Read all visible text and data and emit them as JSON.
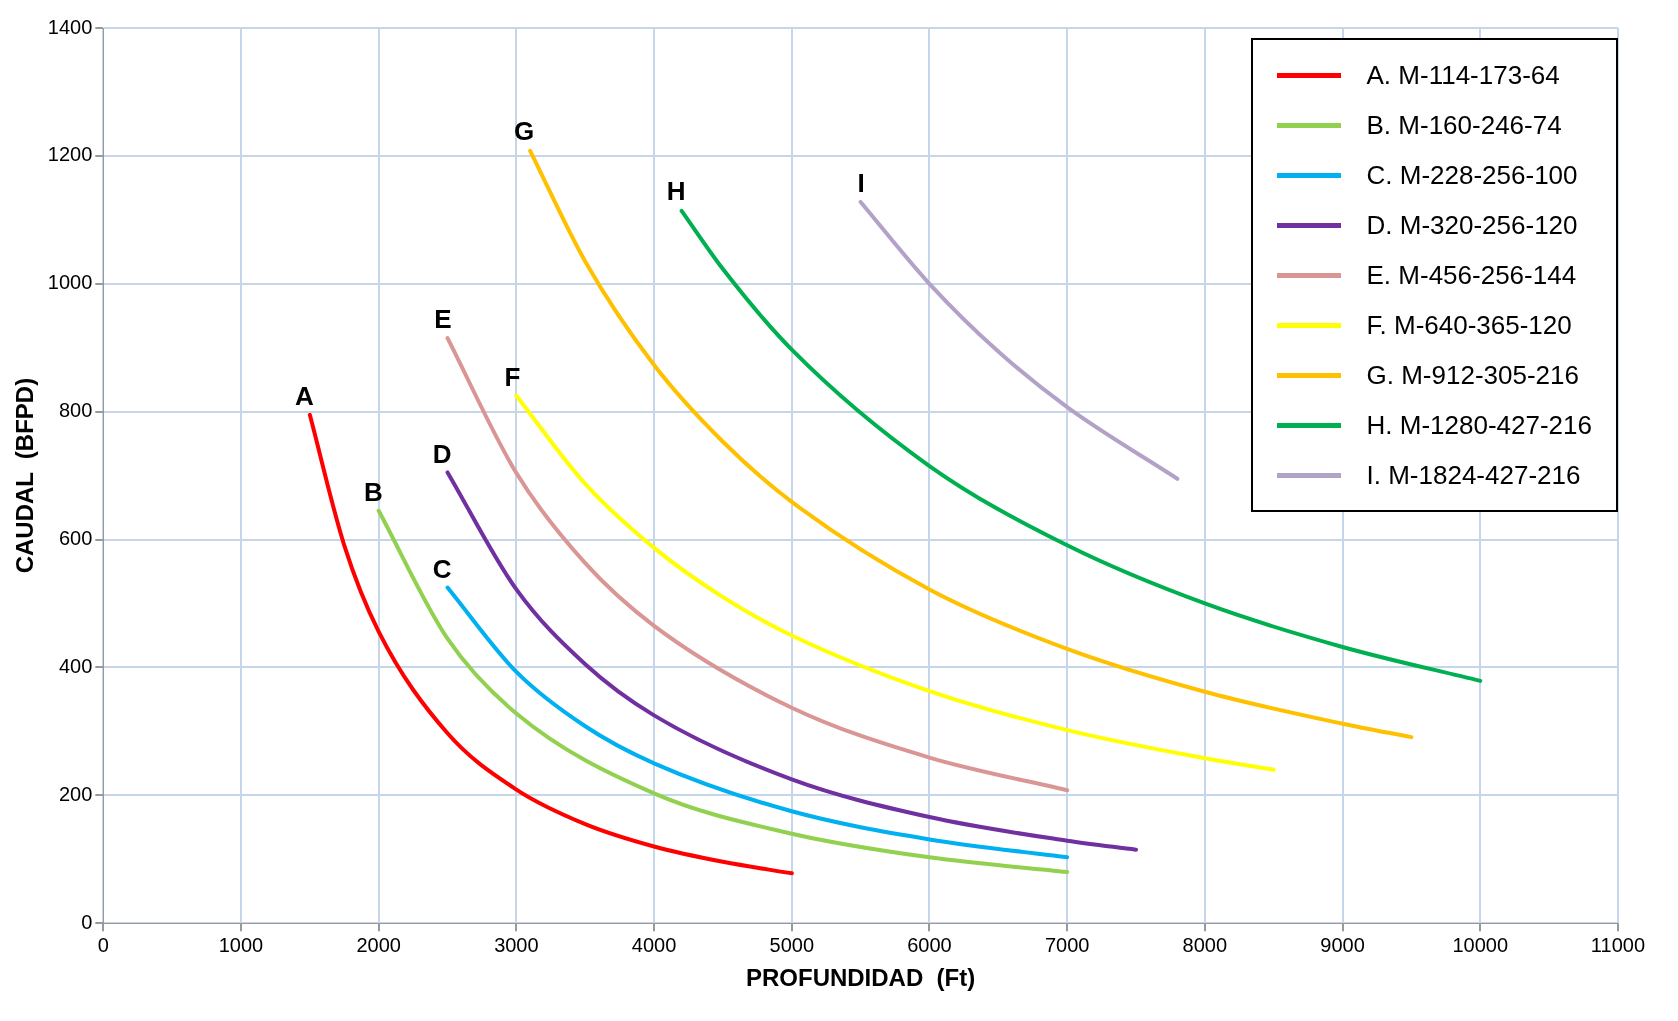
{
  "chart_data": {
    "type": "line",
    "xlabel": "PROFUNDIDAD  (Ft)",
    "ylabel": "CAUDAL  (BFPD)",
    "xlim": [
      0,
      11000
    ],
    "xticks": [
      0,
      1000,
      2000,
      3000,
      4000,
      5000,
      6000,
      7000,
      8000,
      9000,
      10000,
      11000
    ],
    "ylim": [
      0,
      1400
    ],
    "yticks": [
      0,
      200,
      400,
      600,
      800,
      1000,
      1200,
      1400
    ],
    "grid": true,
    "legend": "top right",
    "marker": "none",
    "line_style": "solid",
    "series": [
      {
        "name": "A.  M-114-173-64",
        "color": "#ff0000",
        "x": [
          1500,
          1750,
          2000,
          2500,
          3000,
          3500,
          4000,
          4500,
          5000
        ],
        "values": [
          795,
          591,
          456,
          297,
          209,
          155,
          120,
          96,
          78
        ]
      },
      {
        "name": "B.  M-160-246-74",
        "color": "#92d050",
        "x": [
          2000,
          2500,
          3000,
          4000,
          5000,
          6000,
          7000
        ],
        "values": [
          645,
          445,
          328,
          203,
          140,
          103,
          80
        ]
      },
      {
        "name": "C.  M-228-256-100",
        "color": "#00b0f0",
        "x": [
          2500,
          3000,
          3500,
          4000,
          5000,
          6000,
          7000
        ],
        "values": [
          525,
          393,
          308,
          250,
          175,
          131,
          103
        ]
      },
      {
        "name": "D.  M-320-256-120",
        "color": "#7030a0",
        "x": [
          2500,
          3000,
          3500,
          4000,
          5000,
          6000,
          7000,
          7500
        ],
        "values": [
          705,
          522,
          405,
          325,
          225,
          166,
          129,
          115
        ]
      },
      {
        "name": "E.  M-456-256-144",
        "color": "#d99694",
        "x": [
          2500,
          3000,
          3500,
          4000,
          5000,
          6000,
          7000
        ],
        "values": [
          915,
          704,
          563,
          465,
          337,
          259,
          208
        ]
      },
      {
        "name": "F.  M-640-365-120",
        "color": "#ffff00",
        "x": [
          3000,
          3500,
          4000,
          4500,
          5000,
          6000,
          7000,
          8000,
          8500
        ],
        "values": [
          825,
          687,
          587,
          510,
          450,
          363,
          302,
          258,
          240
        ]
      },
      {
        "name": "G.  M-912-305-216",
        "color": "#ffc000",
        "x": [
          3100,
          3500,
          4000,
          4500,
          5000,
          6000,
          7000,
          8000,
          9000,
          9500
        ],
        "values": [
          1208,
          1035,
          873,
          753,
          659,
          522,
          429,
          362,
          312,
          291
        ]
      },
      {
        "name": "H.  M-1280-427-216",
        "color": "#00b050",
        "x": [
          4200,
          4500,
          5000,
          6000,
          7000,
          8000,
          9000,
          10000
        ],
        "values": [
          1114,
          1023,
          897,
          715,
          591,
          500,
          432,
          379
        ]
      },
      {
        "name": "I.  M-1824-427-216",
        "color": "#b3a2c7",
        "x": [
          5500,
          6000,
          6500,
          7000,
          7800
        ],
        "values": [
          1128,
          1000,
          894,
          807,
          695
        ]
      }
    ],
    "annotations": [
      {
        "text": "A",
        "x": 1500,
        "y": 795
      },
      {
        "text": "B",
        "x": 2000,
        "y": 645
      },
      {
        "text": "C",
        "x": 2500,
        "y": 525
      },
      {
        "text": "D",
        "x": 2500,
        "y": 705
      },
      {
        "text": "E",
        "x": 2500,
        "y": 915
      },
      {
        "text": "F",
        "x": 3000,
        "y": 825
      },
      {
        "text": "G",
        "x": 3100,
        "y": 1210
      },
      {
        "text": "H",
        "x": 4200,
        "y": 1115
      },
      {
        "text": "I",
        "x": 5500,
        "y": 1128
      }
    ]
  }
}
